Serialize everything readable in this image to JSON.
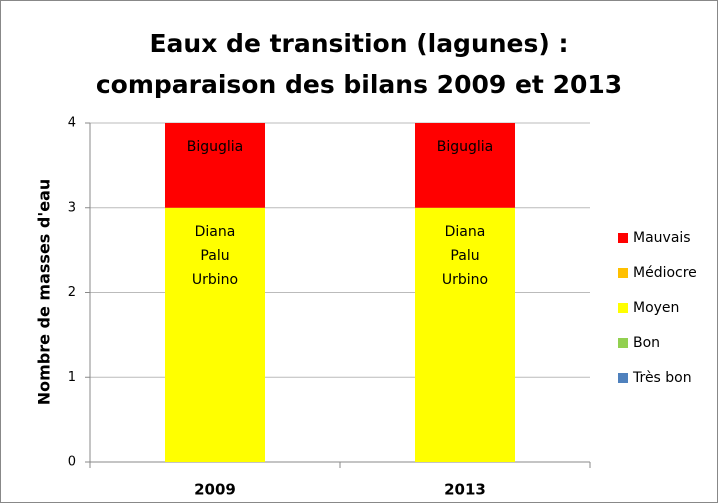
{
  "chart_data": {
    "type": "stacked_bar",
    "title": [
      "Eaux de transition (lagunes) :",
      "comparaison des bilans 2009 et 2013"
    ],
    "y_label": "Nombre de masses d'eau",
    "categories": [
      "2009",
      "2013"
    ],
    "series": [
      {
        "name": "Très bon",
        "color": "#4f81bd",
        "values": [
          0,
          0
        ]
      },
      {
        "name": "Bon",
        "color": "#92d050",
        "values": [
          0,
          0
        ]
      },
      {
        "name": "Moyen",
        "color": "#ffff00",
        "values": [
          3,
          3
        ],
        "segment_labels": [
          [
            "Diana",
            "Palu",
            "Urbino"
          ],
          [
            "Diana",
            "Palu",
            "Urbino"
          ]
        ]
      },
      {
        "name": "Médiocre",
        "color": "#ffc000",
        "values": [
          0,
          0
        ]
      },
      {
        "name": "Mauvais",
        "color": "#ff0000",
        "values": [
          1,
          1
        ],
        "segment_labels": [
          [
            "Biguglia"
          ],
          [
            "Biguglia"
          ]
        ]
      }
    ],
    "ylim": [
      0,
      4
    ],
    "yticks": [
      0,
      1,
      2,
      3,
      4
    ],
    "grid": true,
    "legend": "right"
  }
}
